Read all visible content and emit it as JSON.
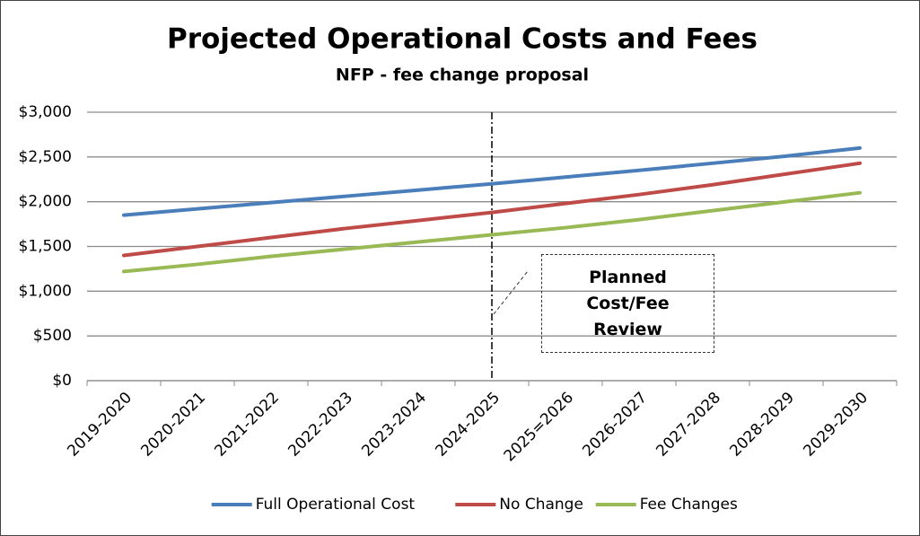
{
  "chart_data": {
    "type": "line",
    "title": "Projected Operational Costs and Fees",
    "subtitle": "NFP - fee change proposal",
    "categories": [
      "2019-2020",
      "2020-2021",
      "2021-2022",
      "2022-2023",
      "2023-2024",
      "2024-2025",
      "2025=2026",
      "2026-2027",
      "2027-2028",
      "2028-2029",
      "2029-2030"
    ],
    "series": [
      {
        "name": "Full Operational Cost",
        "color": "#4a7ebb",
        "values": [
          1850,
          1920,
          1990,
          2060,
          2130,
          2200,
          2275,
          2350,
          2430,
          2510,
          2600
        ]
      },
      {
        "name": "No Change",
        "color": "#be4b48",
        "values": [
          1400,
          1500,
          1600,
          1700,
          1790,
          1880,
          1980,
          2080,
          2190,
          2310,
          2430
        ]
      },
      {
        "name": "Fee Changes",
        "color": "#98b954",
        "values": [
          1220,
          1300,
          1390,
          1470,
          1550,
          1630,
          1710,
          1800,
          1900,
          2000,
          2100
        ]
      }
    ],
    "ylim": [
      0,
      3000
    ],
    "yticks": [
      {
        "value": 0,
        "label": "$0"
      },
      {
        "value": 500,
        "label": "$500"
      },
      {
        "value": 1000,
        "label": "$1,000"
      },
      {
        "value": 1500,
        "label": "$1,500"
      },
      {
        "value": 2000,
        "label": "$2,000"
      },
      {
        "value": 2500,
        "label": "$2,500"
      },
      {
        "value": 3000,
        "label": "$3,000"
      }
    ],
    "grid": true,
    "legend": "bottom",
    "vline": "2024-2025",
    "annotation": "Planned Cost/Fee Review"
  }
}
